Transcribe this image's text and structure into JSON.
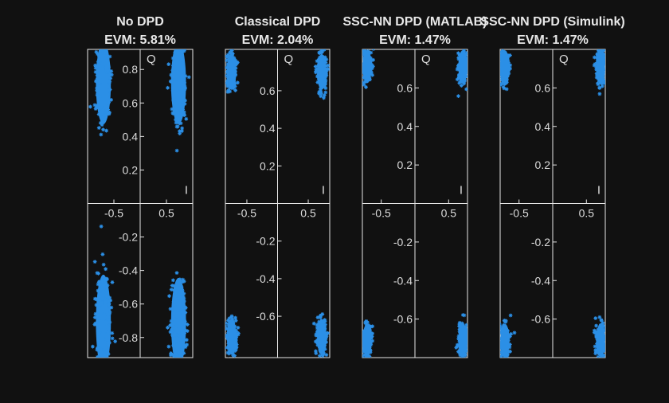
{
  "figure": {
    "background": "#111111",
    "marker_color": "#2b8fe6",
    "axis_color": "#e6e6e6",
    "text_color": "#dcdcdc"
  },
  "chart_data": [
    {
      "type": "scatter",
      "title": "No DPD",
      "subtitle": "EVM: 5.81%",
      "xlabel": "I",
      "ylabel": "Q",
      "xlim": [
        -1.0,
        1.0
      ],
      "ylim": [
        -0.92,
        0.92
      ],
      "xticks": [
        -0.5,
        0.5
      ],
      "xtick_labels": [
        "-0.5",
        "0.5"
      ],
      "yticks": [
        -0.8,
        -0.6,
        -0.4,
        -0.2,
        0.2,
        0.4,
        0.6,
        0.8
      ],
      "ytick_labels": [
        "-0.8",
        "-0.6",
        "-0.4",
        "-0.2",
        "0.2",
        "0.4",
        "0.6",
        "0.8"
      ],
      "marker": "asterisk",
      "clusters": [
        {
          "x": -0.7,
          "y": 0.72,
          "spread_x": 0.075,
          "spread_y": 0.13
        },
        {
          "x": 0.73,
          "y": 0.72,
          "spread_x": 0.075,
          "spread_y": 0.13
        },
        {
          "x": -0.7,
          "y": -0.71,
          "spread_x": 0.075,
          "spread_y": 0.15
        },
        {
          "x": 0.73,
          "y": -0.71,
          "spread_x": 0.075,
          "spread_y": 0.14
        }
      ]
    },
    {
      "type": "scatter",
      "title": "Classical DPD",
      "subtitle": "EVM: 2.04%",
      "xlabel": "I",
      "ylabel": "Q",
      "xlim": [
        -0.85,
        0.85
      ],
      "ylim": [
        -0.82,
        0.82
      ],
      "xticks": [
        -0.5,
        0.5
      ],
      "xtick_labels": [
        "-0.5",
        "0.5"
      ],
      "yticks": [
        -0.6,
        -0.4,
        -0.2,
        0.2,
        0.4,
        0.6
      ],
      "ytick_labels": [
        "-0.6",
        "-0.4",
        "-0.2",
        "0.2",
        "0.4",
        "0.6"
      ],
      "marker": "asterisk",
      "clusters": [
        {
          "x": -0.75,
          "y": 0.7,
          "spread_x": 0.04,
          "spread_y": 0.05
        },
        {
          "x": 0.72,
          "y": 0.7,
          "spread_x": 0.04,
          "spread_y": 0.05
        },
        {
          "x": -0.75,
          "y": -0.71,
          "spread_x": 0.04,
          "spread_y": 0.05
        },
        {
          "x": 0.72,
          "y": -0.71,
          "spread_x": 0.04,
          "spread_y": 0.05
        }
      ]
    },
    {
      "type": "scatter",
      "title": "SSC-NN DPD (MATLAB)",
      "subtitle": "EVM: 1.47%",
      "xlabel": "I",
      "ylabel": "Q",
      "xlim": [
        -0.78,
        0.78
      ],
      "ylim": [
        -0.8,
        0.8
      ],
      "xticks": [
        -0.5,
        0.5
      ],
      "xtick_labels": [
        "-0.5",
        "0.5"
      ],
      "yticks": [
        -0.6,
        -0.4,
        -0.2,
        0.2,
        0.4,
        0.6
      ],
      "ytick_labels": [
        "-0.6",
        "-0.4",
        "-0.2",
        "0.2",
        "0.4",
        "0.6"
      ],
      "marker": "asterisk",
      "clusters": [
        {
          "x": -0.71,
          "y": 0.71,
          "spread_x": 0.035,
          "spread_y": 0.045
        },
        {
          "x": 0.71,
          "y": 0.71,
          "spread_x": 0.035,
          "spread_y": 0.045
        },
        {
          "x": -0.71,
          "y": -0.71,
          "spread_x": 0.035,
          "spread_y": 0.045
        },
        {
          "x": 0.71,
          "y": -0.71,
          "spread_x": 0.035,
          "spread_y": 0.045
        }
      ]
    },
    {
      "type": "scatter",
      "title": "SSC-NN DPD (Simulink)",
      "subtitle": "EVM: 1.47%",
      "xlabel": "I",
      "ylabel": "Q",
      "xlim": [
        -0.78,
        0.78
      ],
      "ylim": [
        -0.8,
        0.8
      ],
      "xticks": [
        -0.5,
        0.5
      ],
      "xtick_labels": [
        "-0.5",
        "0.5"
      ],
      "yticks": [
        -0.6,
        -0.4,
        -0.2,
        0.2,
        0.4,
        0.6
      ],
      "ytick_labels": [
        "-0.6",
        "-0.4",
        "-0.2",
        "0.2",
        "0.4",
        "0.6"
      ],
      "marker": "asterisk",
      "clusters": [
        {
          "x": -0.71,
          "y": 0.71,
          "spread_x": 0.035,
          "spread_y": 0.045
        },
        {
          "x": 0.71,
          "y": 0.71,
          "spread_x": 0.035,
          "spread_y": 0.045
        },
        {
          "x": -0.71,
          "y": -0.71,
          "spread_x": 0.035,
          "spread_y": 0.045
        },
        {
          "x": 0.71,
          "y": -0.71,
          "spread_x": 0.035,
          "spread_y": 0.045
        }
      ]
    }
  ]
}
